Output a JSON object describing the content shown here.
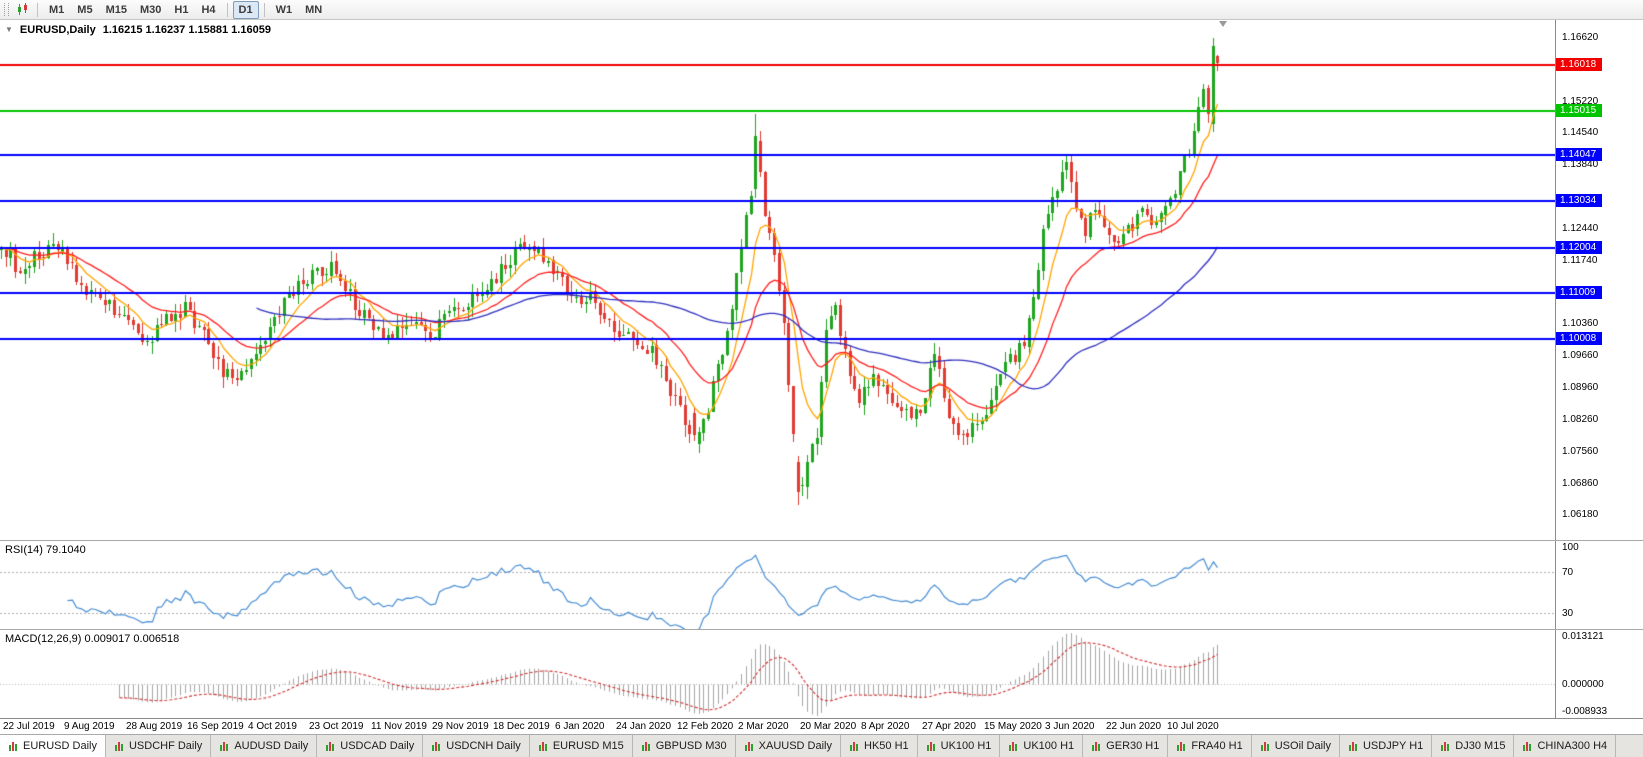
{
  "toolbar": {
    "groups": [
      [
        "M1",
        "M5",
        "M15",
        "M30",
        "H1",
        "H4"
      ],
      [
        "D1"
      ],
      [
        "W1",
        "MN"
      ]
    ],
    "active": "D1",
    "icons": [
      "toolbar-drag-handle",
      "chart-type-icon"
    ]
  },
  "chart": {
    "title_symbol": "EURUSD,Daily",
    "title_ohlc": "1.16215 1.16237 1.15881 1.16059",
    "price_axis_ticks": [
      "1.16620",
      "1.15220",
      "1.14540",
      "1.13840",
      "1.12440",
      "1.11740",
      "1.10360",
      "1.09660",
      "1.08960",
      "1.08260",
      "1.07560",
      "1.06860",
      "1.06180"
    ],
    "levels": [
      {
        "price": "1.16018",
        "color": "#f00000"
      },
      {
        "price": "1.15015",
        "color": "#00c400"
      },
      {
        "price": "1.14047",
        "color": "#0000ff"
      },
      {
        "price": "1.13034",
        "color": "#0000ff"
      },
      {
        "price": "1.12004",
        "color": "#0000ff"
      },
      {
        "price": "1.11009",
        "color": "#0000ff"
      },
      {
        "price": "1.10008",
        "color": "#0000ff"
      }
    ],
    "dates": [
      "22 Jul 2019",
      "9 Aug 2019",
      "28 Aug 2019",
      "16 Sep 2019",
      "4 Oct 2019",
      "23 Oct 2019",
      "11 Nov 2019",
      "29 Nov 2019",
      "18 Dec 2019",
      "6 Jan 2020",
      "24 Jan 2020",
      "12 Feb 2020",
      "2 Mar 2020",
      "20 Mar 2020",
      "8 Apr 2020",
      "27 Apr 2020",
      "15 May 2020",
      "3 Jun 2020",
      "22 Jun 2020",
      "10 Jul 2020"
    ]
  },
  "rsi": {
    "label": "RSI(14) 79.1040",
    "period": 14,
    "axis": [
      "100",
      "70",
      "30"
    ],
    "levels": [
      70,
      30
    ],
    "range": [
      15,
      100
    ],
    "line_color": "#4a8fd4"
  },
  "macd": {
    "label": "MACD(12,26,9) 0.009017 0.006518",
    "fast": 12,
    "slow": 26,
    "signal": 9,
    "axis_top": "0.013121",
    "axis_zero": "0.000000",
    "axis_bottom": "-0.008933",
    "histogram_color": "#a6a6a6",
    "signal_color": "#d23030"
  },
  "tabs": [
    {
      "label": "EURUSD Daily",
      "active": true
    },
    {
      "label": "USDCHF Daily",
      "active": false
    },
    {
      "label": "AUDUSD Daily",
      "active": false
    },
    {
      "label": "USDCAD Daily",
      "active": false
    },
    {
      "label": "USDCNH Daily",
      "active": false
    },
    {
      "label": "EURUSD M15",
      "active": false
    },
    {
      "label": "GBPUSD M30",
      "active": false
    },
    {
      "label": "XAUUSD Daily",
      "active": false
    },
    {
      "label": "HK50 H1",
      "active": false
    },
    {
      "label": "UK100 H1",
      "active": false
    },
    {
      "label": "UK100 H1",
      "active": false
    },
    {
      "label": "GER30 H1",
      "active": false
    },
    {
      "label": "FRA40 H1",
      "active": false
    },
    {
      "label": "USOil Daily",
      "active": false
    },
    {
      "label": "USDJPY H1",
      "active": false
    },
    {
      "label": "DJ30 M15",
      "active": false
    },
    {
      "label": "CHINA300 H4",
      "active": false
    }
  ],
  "chart_data": {
    "type": "candlestick",
    "symbol": "EURUSD",
    "timeframe": "Daily",
    "bars": 259,
    "price_range": [
      1.056,
      1.17
    ],
    "seed": 9,
    "noise": 0.0017,
    "wick": 0.0026,
    "anchors": [
      [
        0,
        1.121
      ],
      [
        4,
        1.115
      ],
      [
        8,
        1.119
      ],
      [
        13,
        1.12
      ],
      [
        17,
        1.112
      ],
      [
        22,
        1.1078
      ],
      [
        26,
        1.1058
      ],
      [
        30,
        1.099
      ],
      [
        35,
        1.104
      ],
      [
        39,
        1.1068
      ],
      [
        43,
        1.101
      ],
      [
        47,
        1.093
      ],
      [
        50,
        1.0898
      ],
      [
        54,
        1.0978
      ],
      [
        58,
        1.104
      ],
      [
        62,
        1.1108
      ],
      [
        66,
        1.114
      ],
      [
        70,
        1.1158
      ],
      [
        74,
        1.1098
      ],
      [
        78,
        1.103
      ],
      [
        82,
        1.1008
      ],
      [
        86,
        1.1048
      ],
      [
        91,
        1.101
      ],
      [
        95,
        1.1058
      ],
      [
        99,
        1.1078
      ],
      [
        104,
        1.1128
      ],
      [
        108,
        1.1178
      ],
      [
        111,
        1.1208
      ],
      [
        114,
        1.1188
      ],
      [
        117,
        1.1158
      ],
      [
        121,
        1.1098
      ],
      [
        125,
        1.1088
      ],
      [
        130,
        1.1018
      ],
      [
        134,
        1.0998
      ],
      [
        138,
        1.0978
      ],
      [
        143,
        1.0868
      ],
      [
        147,
        1.079
      ],
      [
        150,
        1.0848
      ],
      [
        153,
        1.0978
      ],
      [
        156,
        1.1128
      ],
      [
        159,
        1.1328
      ],
      [
        160,
        1.1445
      ],
      [
        162,
        1.1278
      ],
      [
        164,
        1.1178
      ],
      [
        166,
        1.1048
      ],
      [
        168,
        1.0778
      ],
      [
        169,
        1.0665
      ],
      [
        171,
        1.0718
      ],
      [
        173,
        1.0798
      ],
      [
        175,
        1.1018
      ],
      [
        177,
        1.1078
      ],
      [
        179,
        1.0968
      ],
      [
        182,
        1.0868
      ],
      [
        185,
        1.0918
      ],
      [
        188,
        1.0888
      ],
      [
        191,
        1.0848
      ],
      [
        195,
        1.0828
      ],
      [
        198,
        1.0978
      ],
      [
        201,
        1.0838
      ],
      [
        203,
        1.0788
      ],
      [
        206,
        1.0808
      ],
      [
        208,
        1.0818
      ],
      [
        211,
        1.0898
      ],
      [
        214,
        1.0958
      ],
      [
        217,
        1.0988
      ],
      [
        219,
        1.1108
      ],
      [
        221,
        1.1228
      ],
      [
        224,
        1.1328
      ],
      [
        226,
        1.1388
      ],
      [
        228,
        1.1288
      ],
      [
        230,
        1.1238
      ],
      [
        232,
        1.1288
      ],
      [
        234,
        1.1258
      ],
      [
        236,
        1.1208
      ],
      [
        238,
        1.1228
      ],
      [
        240,
        1.1248
      ],
      [
        242,
        1.1278
      ],
      [
        244,
        1.1248
      ],
      [
        247,
        1.1298
      ],
      [
        249,
        1.1328
      ],
      [
        251,
        1.1398
      ],
      [
        253,
        1.1448
      ],
      [
        255,
        1.1558
      ],
      [
        256,
        1.1498
      ],
      [
        257,
        1.1642
      ],
      [
        258,
        1.1606
      ]
    ],
    "overrides": {
      "147": [
        1.0838,
        1.0852,
        1.0778,
        1.079
      ],
      "160": [
        1.133,
        1.1495,
        1.131,
        1.1445
      ],
      "169": [
        1.073,
        1.0745,
        1.0637,
        1.0665
      ],
      "257": [
        1.1472,
        1.1661,
        1.1455,
        1.1642
      ],
      "258": [
        1.16215,
        1.16237,
        1.15881,
        1.16059
      ]
    },
    "colors": {
      "up_candle": "#1fa51f",
      "down_candle": "#e03c32",
      "background": "#ffffff"
    },
    "moving_averages": [
      {
        "period": 8,
        "method": "ema",
        "color": "#ffa500"
      },
      {
        "period": 21,
        "method": "ema",
        "color": "#ff2020"
      },
      {
        "period": 55,
        "method": "sma",
        "color": "#3030c0"
      }
    ]
  }
}
